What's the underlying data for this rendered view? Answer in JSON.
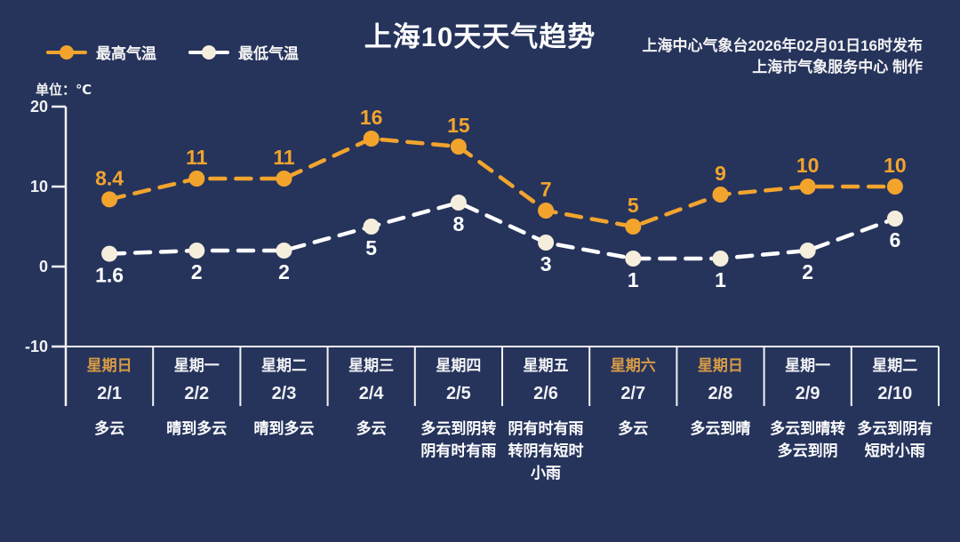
{
  "title": "上海10天天气趋势",
  "issuer": {
    "line1": "上海中心气象台2026年02月01日16时发布",
    "line2": "上海市气象服务中心  制作"
  },
  "unit_label": "单位：℃",
  "legend": [
    {
      "label": "最高气温",
      "line_color": "#f2a42d",
      "dot_color": "#f2a42d"
    },
    {
      "label": "最低气温",
      "line_color": "#ffffff",
      "dot_color": "#f6eedc"
    }
  ],
  "colors": {
    "background": "#26345c",
    "axis": "#f2f2f2",
    "high_series": "#f2a42d",
    "high_label": "#f2a42d",
    "low_line": "#ffffff",
    "low_marker": "#f6eedc",
    "low_label": "#ffffff",
    "weekday_text": "#f2f2f5",
    "weekend_text": "#d79b45"
  },
  "chart_data": {
    "type": "line",
    "title": "上海10天天气趋势",
    "ylabel": "℃",
    "ylim": [
      -10,
      20
    ],
    "yticks": [
      20,
      10,
      0,
      -10
    ],
    "grid": "only baseline at -10",
    "legend_position": "top-left",
    "categories": [
      "2/1",
      "2/2",
      "2/3",
      "2/4",
      "2/5",
      "2/6",
      "2/7",
      "2/8",
      "2/9",
      "2/10"
    ],
    "series": [
      {
        "name": "最高气温",
        "values": [
          8.4,
          11,
          11,
          16,
          15,
          7,
          5,
          9,
          10,
          10
        ]
      },
      {
        "name": "最低气温",
        "values": [
          1.6,
          2,
          2,
          5,
          8,
          3,
          1,
          1,
          2,
          6
        ]
      }
    ],
    "days": [
      {
        "weekday": "星期日",
        "date": "2/1",
        "weather": "多云",
        "weekend": true
      },
      {
        "weekday": "星期一",
        "date": "2/2",
        "weather": "晴到多云",
        "weekend": false
      },
      {
        "weekday": "星期二",
        "date": "2/3",
        "weather": "晴到多云",
        "weekend": false
      },
      {
        "weekday": "星期三",
        "date": "2/4",
        "weather": "多云",
        "weekend": false
      },
      {
        "weekday": "星期四",
        "date": "2/5",
        "weather": "多云到阴转阴有时有雨",
        "weekend": false
      },
      {
        "weekday": "星期五",
        "date": "2/6",
        "weather": "阴有时有雨转阴有短时小雨",
        "weekend": false
      },
      {
        "weekday": "星期六",
        "date": "2/7",
        "weather": "多云",
        "weekend": true
      },
      {
        "weekday": "星期日",
        "date": "2/8",
        "weather": "多云到晴",
        "weekend": true
      },
      {
        "weekday": "星期一",
        "date": "2/9",
        "weather": "多云到晴转多云到阴",
        "weekend": false
      },
      {
        "weekday": "星期二",
        "date": "2/10",
        "weather": "多云到阴有短时小雨",
        "weekend": false
      }
    ]
  }
}
